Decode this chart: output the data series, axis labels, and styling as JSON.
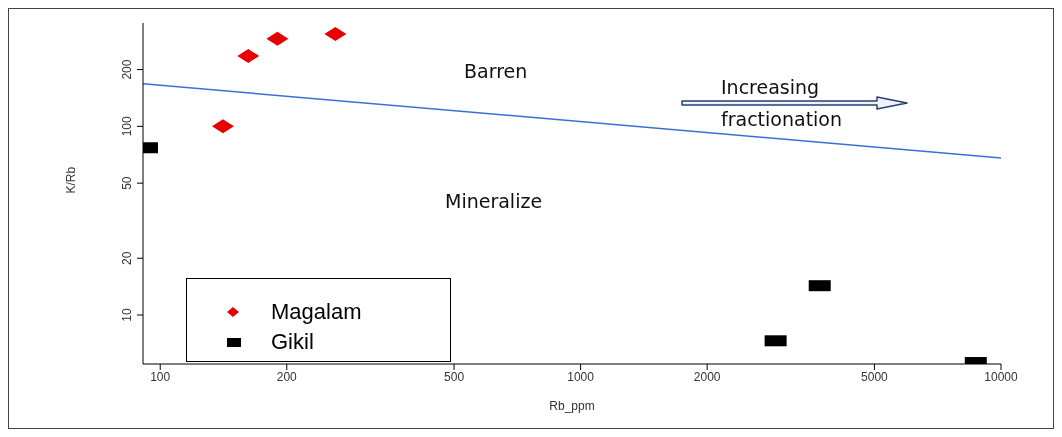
{
  "chart_data": {
    "type": "scatter",
    "xlabel": "Rb_ppm",
    "ylabel": "K/Rb",
    "log": "xy",
    "xlim": [
      91,
      10000
    ],
    "xticks": [
      100,
      200,
      500,
      1000,
      2000,
      5000,
      10000
    ],
    "ylim": [
      5.5,
      353
    ],
    "yticks": [
      10,
      20,
      50,
      100,
      200
    ],
    "legend": "bottom left",
    "series": [
      {
        "name": "Magalam",
        "color": "#e60000",
        "marker": "diamond",
        "x": [
          141,
          162,
          190,
          261
        ],
        "values": [
          100,
          236,
          291,
          309
        ]
      },
      {
        "name": "Gikil",
        "color": "#000000",
        "marker": "square",
        "x": [
          93,
          2910,
          3705,
          8710
        ],
        "values": [
          77,
          7.3,
          14.3,
          5.6
        ]
      },
      {
        "type": "line",
        "color": "#3b6fd6",
        "marker": "none",
        "x": [
          91,
          10000
        ],
        "values": [
          168,
          68
        ]
      }
    ],
    "annotations": [
      "Barren",
      "Mineralize",
      "Increasing fractionation"
    ]
  }
}
